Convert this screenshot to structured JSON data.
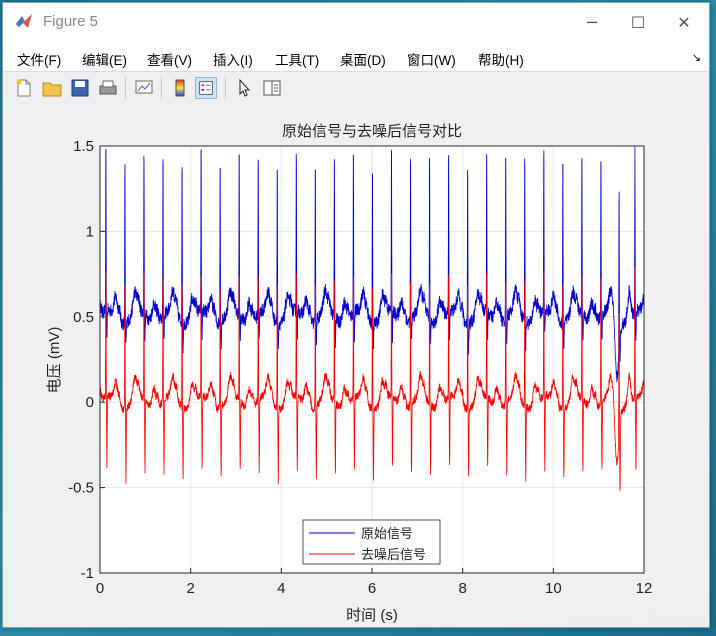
{
  "window": {
    "title": "Figure 5",
    "minimize": "─",
    "maximize": "☐",
    "close": "✕"
  },
  "menu": {
    "items": [
      "文件(F)",
      "编辑(E)",
      "查看(V)",
      "插入(I)",
      "工具(T)",
      "桌面(D)",
      "窗口(W)",
      "帮助(H)"
    ],
    "more": "↘"
  },
  "toolbar": {
    "icons": [
      "new-file-icon",
      "open-folder-icon",
      "save-icon",
      "print-icon",
      "link-plot-icon",
      "colorbar-icon",
      "legend-icon",
      "pointer-icon",
      "property-editor-icon"
    ]
  },
  "chart_data": {
    "type": "line",
    "title": "原始信号与去噪后信号对比",
    "xlabel": "时间 (s)",
    "ylabel": "电压 (mV)",
    "xlim": [
      0,
      12
    ],
    "ylim": [
      -1,
      1.5
    ],
    "xticks": [
      0,
      2,
      4,
      6,
      8,
      10,
      12
    ],
    "yticks": [
      -1,
      -0.5,
      0,
      0.5,
      1,
      1.5
    ],
    "xtick_labels": [
      "0",
      "2",
      "4",
      "6",
      "8",
      "10",
      "12"
    ],
    "ytick_labels": [
      "-1",
      "-0.5",
      "0",
      "0.5",
      "1",
      "1.5"
    ],
    "grid": true,
    "legend_position": "bottom-center",
    "beat_times": [
      0.13,
      0.55,
      0.97,
      1.39,
      1.81,
      2.23,
      2.65,
      3.07,
      3.49,
      3.91,
      4.33,
      4.75,
      5.17,
      5.59,
      6.01,
      6.43,
      6.85,
      7.27,
      7.69,
      8.11,
      8.53,
      8.95,
      9.37,
      9.79,
      10.21,
      10.63,
      11.05,
      11.45,
      11.8
    ],
    "series": [
      {
        "name": "原始信号",
        "color": "#0000cc",
        "baseline": 0.5,
        "peak": 1.5,
        "trough": 0.35
      },
      {
        "name": "去噪后信号",
        "color": "#ff0000",
        "baseline": 0.0,
        "peak": 0.78,
        "trough": -0.42
      }
    ]
  },
  "watermark": "CSDN @刘小小·算法工程师"
}
